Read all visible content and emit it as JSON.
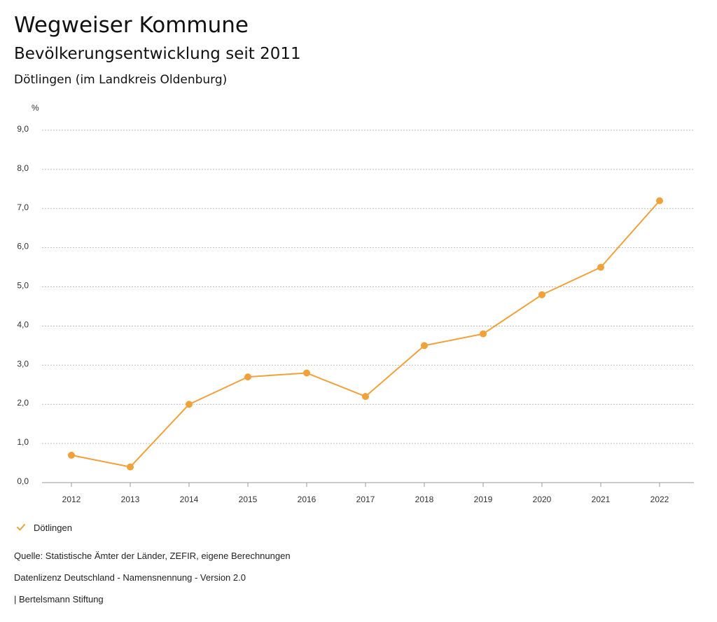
{
  "header": {
    "title": "Wegweiser Kommune",
    "subtitle": "Bevölkerungsentwicklung seit 2011",
    "region": "Dötlingen (im Landkreis Oldenburg)"
  },
  "chart_data": {
    "type": "line",
    "title": "Bevölkerungsentwicklung seit 2011",
    "ylabel": "%",
    "xlabel": "",
    "ylim": [
      0,
      9
    ],
    "y_ticks": [
      "0,0",
      "1,0",
      "2,0",
      "3,0",
      "4,0",
      "5,0",
      "6,0",
      "7,0",
      "8,0",
      "9,0"
    ],
    "grid": true,
    "categories": [
      "2012",
      "2013",
      "2014",
      "2015",
      "2016",
      "2017",
      "2018",
      "2019",
      "2020",
      "2021",
      "2022"
    ],
    "series": [
      {
        "name": "Dötlingen",
        "color": "#f0a13a",
        "values": [
          0.7,
          0.4,
          2.0,
          2.7,
          2.8,
          2.2,
          3.5,
          3.8,
          4.8,
          5.5,
          7.2
        ]
      }
    ]
  },
  "legend": {
    "items": [
      {
        "label": "Dötlingen",
        "icon": "check-icon",
        "color": "#f0a13a"
      }
    ]
  },
  "footer": {
    "source": "Quelle: Statistische Ämter der Länder, ZEFIR, eigene Berechnungen",
    "license": "Datenlizenz Deutschland - Namensnennung - Version 2.0",
    "credit": "| Bertelsmann Stiftung"
  }
}
